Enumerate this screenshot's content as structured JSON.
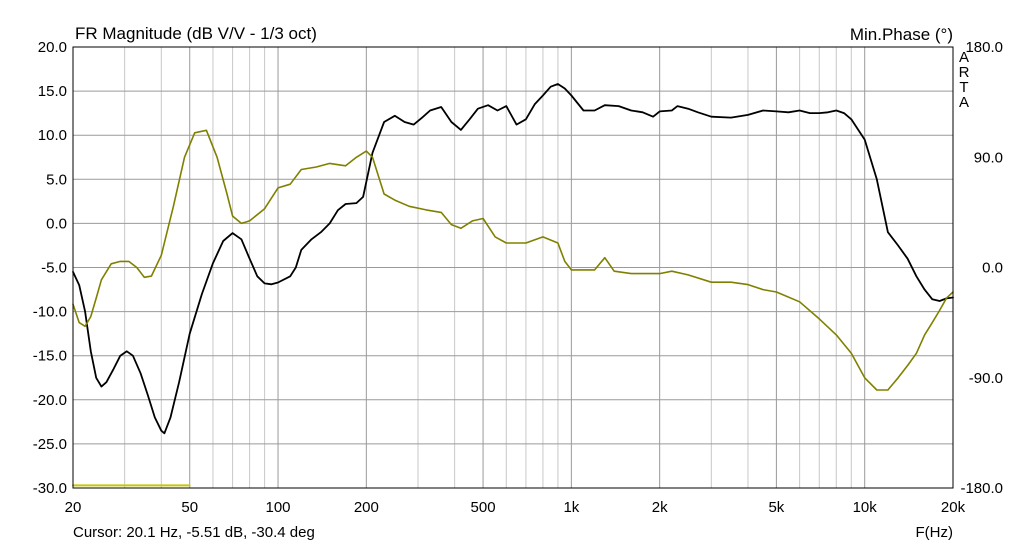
{
  "chart_data": {
    "type": "line",
    "title": "FR Magnitude (dB V/V - 1/3 oct)",
    "right_title": "Min.Phase (°)",
    "watermark": "ARTA",
    "xlabel": "F(Hz)",
    "cursor_text": "Cursor: 20.1 Hz, -5.51 dB, -30.4 deg",
    "x_scale": "log",
    "xlim": [
      20,
      20000
    ],
    "ylim": [
      -30,
      20
    ],
    "y2lim": [
      -180,
      180
    ],
    "grid": true,
    "x_ticks": [
      {
        "v": 20,
        "label": "20"
      },
      {
        "v": 50,
        "label": "50"
      },
      {
        "v": 100,
        "label": "100"
      },
      {
        "v": 200,
        "label": "200"
      },
      {
        "v": 500,
        "label": "500"
      },
      {
        "v": 1000,
        "label": "1k"
      },
      {
        "v": 2000,
        "label": "2k"
      },
      {
        "v": 5000,
        "label": "5k"
      },
      {
        "v": 10000,
        "label": "10k"
      },
      {
        "v": 20000,
        "label": "20k"
      }
    ],
    "y_ticks": [
      {
        "v": 20,
        "label": "20.0"
      },
      {
        "v": 15,
        "label": "15.0"
      },
      {
        "v": 10,
        "label": "10.0"
      },
      {
        "v": 5,
        "label": "5.0"
      },
      {
        "v": 0,
        "label": "0.0"
      },
      {
        "v": -5,
        "label": "-5.0"
      },
      {
        "v": -10,
        "label": "-10.0"
      },
      {
        "v": -15,
        "label": "-15.0"
      },
      {
        "v": -20,
        "label": "-20.0"
      },
      {
        "v": -25,
        "label": "-25.0"
      },
      {
        "v": -30,
        "label": "-30.0"
      }
    ],
    "y2_ticks": [
      {
        "v": 180,
        "label": "180.0"
      },
      {
        "v": 90,
        "label": "90.0"
      },
      {
        "v": 0,
        "label": "0.0"
      },
      {
        "v": -90,
        "label": "-90.0"
      },
      {
        "v": -180,
        "label": "-180.0"
      }
    ],
    "series": [
      {
        "axis": "left",
        "color": "#000000",
        "points": [
          [
            20,
            -5.5
          ],
          [
            21,
            -7
          ],
          [
            22,
            -10
          ],
          [
            23,
            -14.5
          ],
          [
            24,
            -17.5
          ],
          [
            25,
            -18.5
          ],
          [
            26,
            -18
          ],
          [
            27.5,
            -16.5
          ],
          [
            29,
            -15
          ],
          [
            30.5,
            -14.5
          ],
          [
            32,
            -15
          ],
          [
            34,
            -17
          ],
          [
            36,
            -19.5
          ],
          [
            38,
            -22
          ],
          [
            40,
            -23.5
          ],
          [
            41,
            -23.8
          ],
          [
            43,
            -22
          ],
          [
            46,
            -18
          ],
          [
            50,
            -12.5
          ],
          [
            55,
            -8
          ],
          [
            60,
            -4.5
          ],
          [
            65,
            -2
          ],
          [
            70,
            -1.1
          ],
          [
            75,
            -1.8
          ],
          [
            80,
            -4
          ],
          [
            85,
            -6
          ],
          [
            90,
            -6.8
          ],
          [
            95,
            -6.9
          ],
          [
            100,
            -6.7
          ],
          [
            110,
            -6
          ],
          [
            115,
            -5
          ],
          [
            120,
            -3
          ],
          [
            130,
            -1.8
          ],
          [
            140,
            -1
          ],
          [
            150,
            0
          ],
          [
            160,
            1.5
          ],
          [
            170,
            2.2
          ],
          [
            185,
            2.3
          ],
          [
            195,
            3
          ],
          [
            210,
            8
          ],
          [
            230,
            11.5
          ],
          [
            250,
            12.2
          ],
          [
            270,
            11.5
          ],
          [
            290,
            11.2
          ],
          [
            310,
            12
          ],
          [
            330,
            12.8
          ],
          [
            360,
            13.2
          ],
          [
            390,
            11.5
          ],
          [
            420,
            10.6
          ],
          [
            450,
            11.8
          ],
          [
            480,
            13
          ],
          [
            520,
            13.4
          ],
          [
            560,
            12.8
          ],
          [
            600,
            13.3
          ],
          [
            650,
            11.2
          ],
          [
            700,
            11.8
          ],
          [
            750,
            13.5
          ],
          [
            800,
            14.5
          ],
          [
            850,
            15.5
          ],
          [
            900,
            15.8
          ],
          [
            950,
            15.3
          ],
          [
            1000,
            14.5
          ],
          [
            1100,
            12.8
          ],
          [
            1200,
            12.8
          ],
          [
            1300,
            13.4
          ],
          [
            1450,
            13.3
          ],
          [
            1600,
            12.8
          ],
          [
            1750,
            12.6
          ],
          [
            1900,
            12.1
          ],
          [
            2000,
            12.7
          ],
          [
            2200,
            12.8
          ],
          [
            2300,
            13.3
          ],
          [
            2500,
            13
          ],
          [
            2700,
            12.6
          ],
          [
            3000,
            12.1
          ],
          [
            3500,
            12
          ],
          [
            4000,
            12.3
          ],
          [
            4500,
            12.8
          ],
          [
            5000,
            12.7
          ],
          [
            5500,
            12.6
          ],
          [
            6000,
            12.8
          ],
          [
            6500,
            12.5
          ],
          [
            7000,
            12.5
          ],
          [
            7500,
            12.6
          ],
          [
            8000,
            12.8
          ],
          [
            8500,
            12.5
          ],
          [
            9000,
            11.8
          ],
          [
            10000,
            9.5
          ],
          [
            11000,
            5
          ],
          [
            12000,
            -1
          ],
          [
            13000,
            -2.5
          ],
          [
            14000,
            -4
          ],
          [
            15000,
            -6
          ],
          [
            16000,
            -7.5
          ],
          [
            17000,
            -8.6
          ],
          [
            18000,
            -8.8
          ],
          [
            19000,
            -8.5
          ],
          [
            20000,
            -8.4
          ]
        ]
      },
      {
        "axis": "right",
        "color": "#808000",
        "points": [
          [
            20,
            -30
          ],
          [
            21,
            -45
          ],
          [
            22,
            -48
          ],
          [
            23,
            -40
          ],
          [
            24,
            -25
          ],
          [
            25,
            -10
          ],
          [
            27,
            3
          ],
          [
            29,
            5
          ],
          [
            31,
            5
          ],
          [
            33,
            0
          ],
          [
            35,
            -8
          ],
          [
            37,
            -7
          ],
          [
            40,
            10
          ],
          [
            44,
            50
          ],
          [
            48,
            90
          ],
          [
            52,
            110
          ],
          [
            57,
            112
          ],
          [
            62,
            90
          ],
          [
            67,
            60
          ],
          [
            70,
            42
          ],
          [
            75,
            36
          ],
          [
            80,
            38
          ],
          [
            90,
            48
          ],
          [
            100,
            65
          ],
          [
            110,
            68
          ],
          [
            120,
            80
          ],
          [
            135,
            82
          ],
          [
            150,
            85
          ],
          [
            170,
            83
          ],
          [
            185,
            90
          ],
          [
            200,
            95
          ],
          [
            210,
            90
          ],
          [
            230,
            60
          ],
          [
            250,
            55
          ],
          [
            280,
            50
          ],
          [
            320,
            47
          ],
          [
            360,
            45
          ],
          [
            390,
            35
          ],
          [
            420,
            32
          ],
          [
            460,
            38
          ],
          [
            500,
            40
          ],
          [
            550,
            25
          ],
          [
            600,
            20
          ],
          [
            700,
            20
          ],
          [
            800,
            25
          ],
          [
            900,
            20
          ],
          [
            950,
            5
          ],
          [
            1000,
            -2
          ],
          [
            1200,
            -2
          ],
          [
            1300,
            8
          ],
          [
            1400,
            -3
          ],
          [
            1600,
            -5
          ],
          [
            2000,
            -5
          ],
          [
            2200,
            -3
          ],
          [
            2500,
            -6
          ],
          [
            3000,
            -12
          ],
          [
            3500,
            -12
          ],
          [
            4000,
            -14
          ],
          [
            4500,
            -18
          ],
          [
            5000,
            -20
          ],
          [
            6000,
            -28
          ],
          [
            7000,
            -42
          ],
          [
            8000,
            -55
          ],
          [
            9000,
            -70
          ],
          [
            10000,
            -90
          ],
          [
            11000,
            -100
          ],
          [
            12000,
            -100
          ],
          [
            13000,
            -90
          ],
          [
            14000,
            -80
          ],
          [
            15000,
            -70
          ],
          [
            16000,
            -55
          ],
          [
            17000,
            -45
          ],
          [
            18000,
            -35
          ],
          [
            19000,
            -25
          ],
          [
            20000,
            -20
          ]
        ]
      },
      {
        "axis": "left",
        "color": "#c8c800",
        "points": [
          [
            20,
            -29.7
          ],
          [
            50,
            -29.7
          ]
        ]
      }
    ]
  }
}
